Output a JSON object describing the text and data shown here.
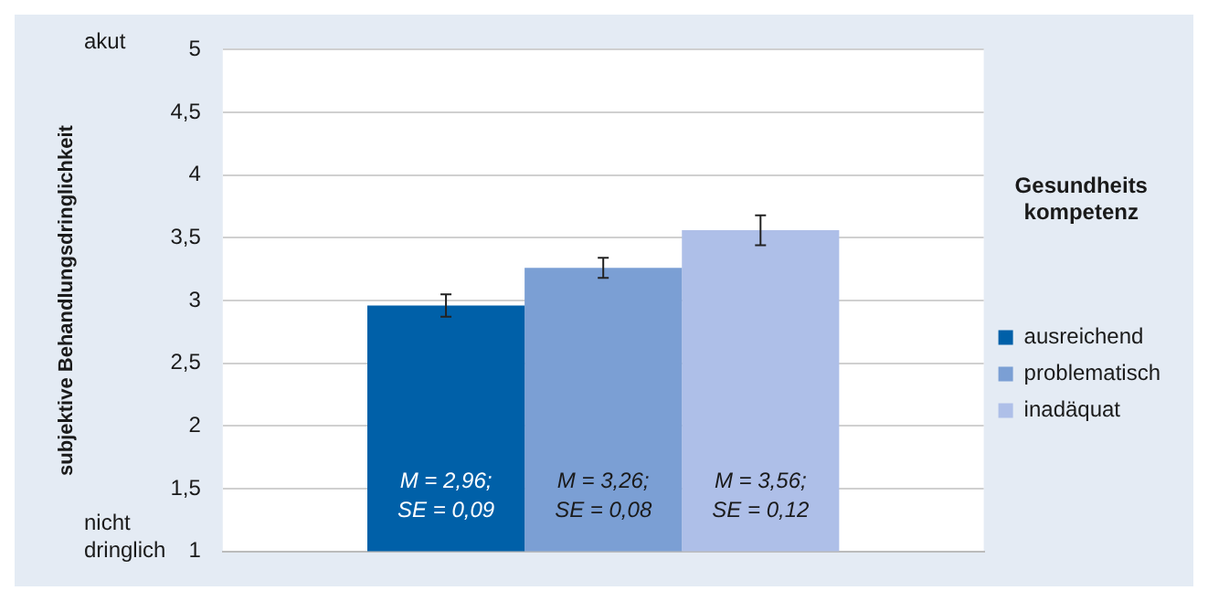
{
  "chart_data": {
    "type": "bar",
    "ylabel": "subjektive Behandlungsdringlichkeit",
    "legend_title": "Gesundheits kompetenz",
    "categories": [
      null
    ],
    "series": [
      {
        "name": "ausreichend",
        "color": "#0060a8",
        "values": [
          2.96
        ],
        "errors": [
          0.09
        ],
        "value_labels": [
          "M = 2,96; SE = 0,09"
        ]
      },
      {
        "name": "problematisch",
        "color": "#7b9fd4",
        "values": [
          3.26
        ],
        "errors": [
          0.08
        ],
        "value_labels": [
          "M = 3,26; SE = 0,08"
        ]
      },
      {
        "name": "inadäquat",
        "color": "#aebfe8",
        "values": [
          3.56
        ],
        "errors": [
          0.12
        ],
        "value_labels": [
          "M = 3,56; SE = 0,12"
        ]
      }
    ],
    "ylim": [
      1,
      5
    ],
    "yticks": [
      1,
      {
        "value": 1.5,
        "label": "1,5"
      },
      2,
      {
        "value": 2.5,
        "label": "2,5"
      },
      3,
      {
        "value": 3.5,
        "label": "3,5"
      },
      4,
      {
        "value": 4.5,
        "label": "4,5"
      },
      5
    ],
    "grid": "y",
    "legend": "right",
    "tick_labels": "y",
    "annotations": [
      "akut",
      "nicht dringlich"
    ]
  }
}
